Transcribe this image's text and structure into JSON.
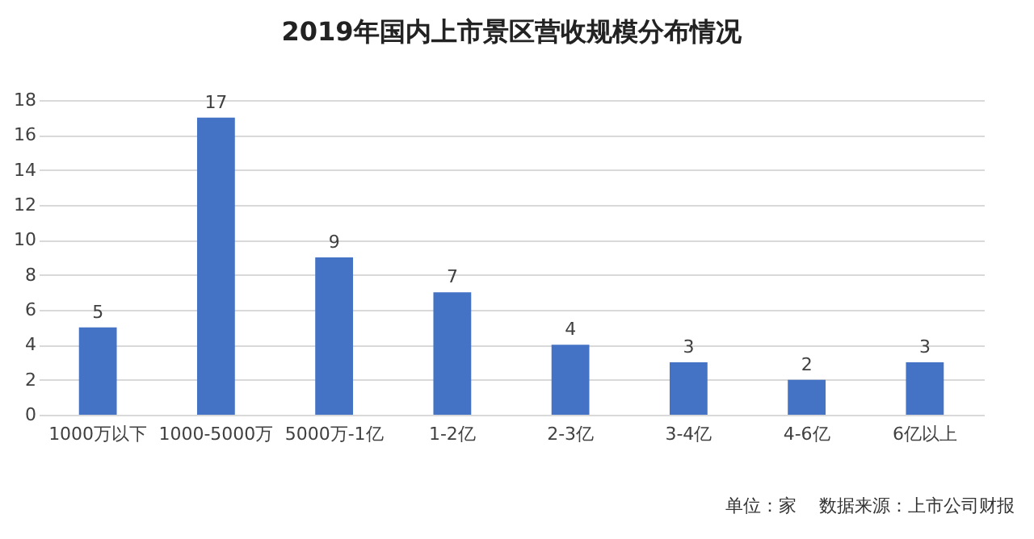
{
  "chart_data": {
    "type": "bar",
    "title": "2019年国内上市景区营收规模分布情况",
    "categories": [
      "1000万以下",
      "1000-5000万",
      "5000万-1亿",
      "1-2亿",
      "2-3亿",
      "3-4亿",
      "4-6亿",
      "6亿以上"
    ],
    "values": [
      5,
      17,
      9,
      7,
      4,
      3,
      2,
      3
    ],
    "color": "#4472c4",
    "ylim": [
      0,
      18
    ],
    "yticks": [
      0,
      2,
      4,
      6,
      8,
      10,
      12,
      14,
      16,
      18
    ],
    "grid": "y",
    "data_labels": true,
    "annotations": [
      "单位：家",
      "数据来源：上市公司财报"
    ]
  }
}
